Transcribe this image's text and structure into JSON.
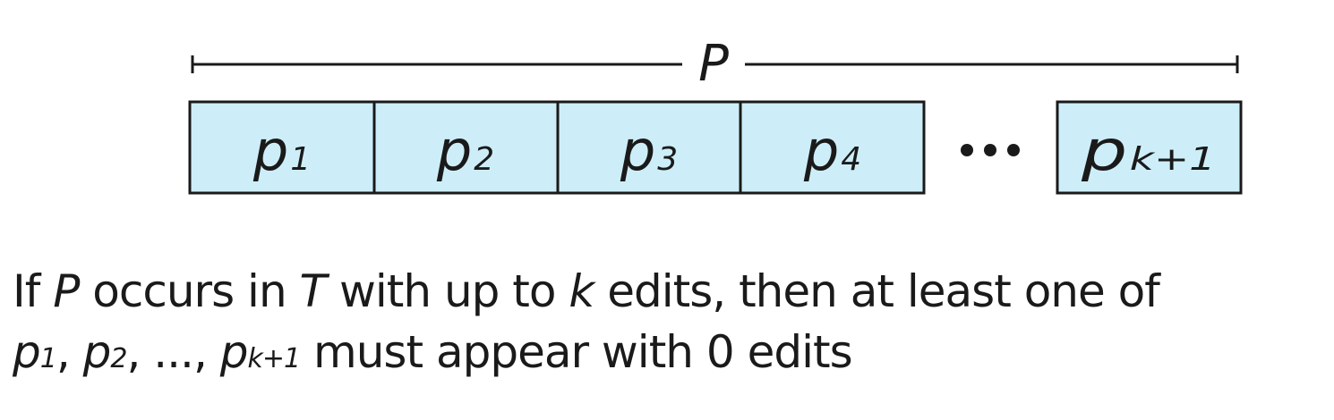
{
  "span": {
    "label": "P"
  },
  "segments": [
    {
      "base": "p",
      "sub": "1"
    },
    {
      "base": "p",
      "sub": "2"
    },
    {
      "base": "p",
      "sub": "3"
    },
    {
      "base": "p",
      "sub": "4"
    },
    {
      "base": "p",
      "sub": "k+1"
    }
  ],
  "ellipsis": "•••",
  "caption": {
    "line1": {
      "t1": "If ",
      "v1": "P",
      "t2": " occurs in ",
      "v2": "T",
      "t3": " with up to ",
      "v3": "k",
      "t4": " edits, then at least one of"
    },
    "line2": {
      "p1": "p",
      "s1": "1",
      "sep1": ", ",
      "p2": "p",
      "s2": "2",
      "sep2": ", ..., ",
      "p3": "p",
      "s3": "k+1",
      "tail": " must appear with 0 edits"
    }
  },
  "colors": {
    "segment_fill": "#cdeef9",
    "stroke": "#1a1a1a"
  }
}
